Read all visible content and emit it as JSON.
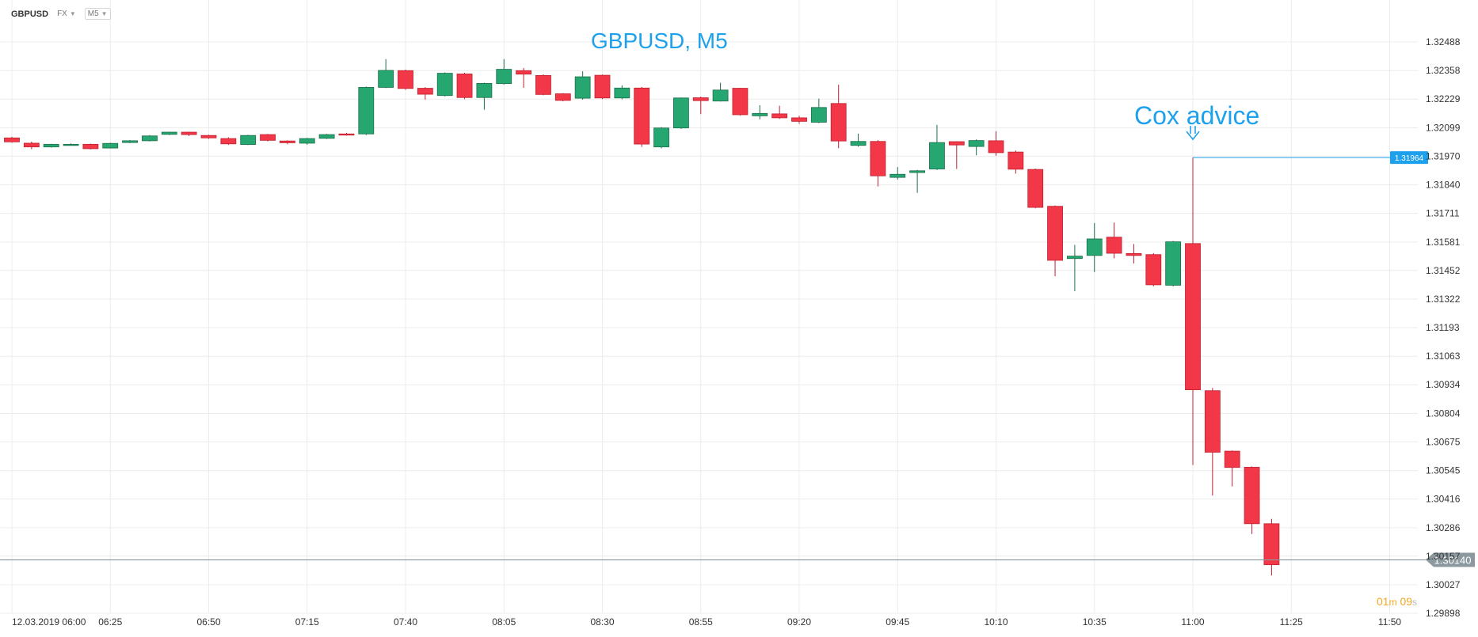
{
  "toolbar": {
    "symbol": "GBPUSD",
    "market": "FX",
    "timeframe": "M5"
  },
  "countdown": {
    "minutes": "01",
    "m": "m",
    "seconds": "09",
    "s": "s"
  },
  "colors": {
    "up": "#26a671",
    "down": "#f23848",
    "accent": "#1ea1ec",
    "grid": "#ececec",
    "price_line": "#8c9aa0",
    "text": "#333333"
  },
  "chart_data": {
    "type": "candlestick",
    "title": "GBPUSD, M5",
    "annotation": {
      "text": "Cox advice",
      "at_time": "11:00",
      "price": 1.31964,
      "price_label": "1.31964"
    },
    "current_price": 1.3014,
    "current_price_label": "1.30140",
    "y_ticks": [
      "1.32488",
      "1.32358",
      "1.32229",
      "1.32099",
      "1.31970",
      "1.31840",
      "1.31711",
      "1.31581",
      "1.31452",
      "1.31322",
      "1.31193",
      "1.31063",
      "1.30934",
      "1.30804",
      "1.30675",
      "1.30545",
      "1.30416",
      "1.30286",
      "1.30157",
      "1.30027",
      "1.29898"
    ],
    "x_ticks": [
      {
        "label": "12.03.2019  06:00",
        "index": 0
      },
      {
        "label": "06:25",
        "index": 5
      },
      {
        "label": "06:50",
        "index": 10
      },
      {
        "label": "07:15",
        "index": 15
      },
      {
        "label": "07:40",
        "index": 20
      },
      {
        "label": "08:05",
        "index": 25
      },
      {
        "label": "08:30",
        "index": 30
      },
      {
        "label": "08:55",
        "index": 35
      },
      {
        "label": "09:20",
        "index": 40
      },
      {
        "label": "09:45",
        "index": 45
      },
      {
        "label": "10:10",
        "index": 50
      },
      {
        "label": "10:35",
        "index": 55
      },
      {
        "label": "11:00",
        "index": 60
      },
      {
        "label": "11:25",
        "index": 65
      },
      {
        "label": "11:50",
        "index": 70
      }
    ],
    "candles": [
      [
        1.32053,
        1.32035,
        1.32058,
        1.32031
      ],
      [
        1.32029,
        1.32012,
        1.32036,
        1.32002
      ],
      [
        1.32012,
        1.32024,
        1.32026,
        1.32009
      ],
      [
        1.32021,
        1.32024,
        1.32028,
        1.32019
      ],
      [
        1.32024,
        1.32004,
        1.32027,
        1.32001
      ],
      [
        1.32007,
        1.32028,
        1.32031,
        1.32005
      ],
      [
        1.32032,
        1.3204,
        1.32043,
        1.32029
      ],
      [
        1.3204,
        1.32062,
        1.32066,
        1.32037
      ],
      [
        1.32069,
        1.32079,
        1.32081,
        1.32066
      ],
      [
        1.32079,
        1.32068,
        1.32081,
        1.32061
      ],
      [
        1.32064,
        1.32053,
        1.32067,
        1.32049
      ],
      [
        1.3205,
        1.32026,
        1.32056,
        1.32021
      ],
      [
        1.32023,
        1.32064,
        1.32067,
        1.3202
      ],
      [
        1.32068,
        1.32042,
        1.32071,
        1.32037
      ],
      [
        1.32039,
        1.32031,
        1.32042,
        1.32024
      ],
      [
        1.32029,
        1.3205,
        1.32053,
        1.32022
      ],
      [
        1.32051,
        1.32068,
        1.32071,
        1.32048
      ],
      [
        1.32071,
        1.32066,
        1.32076,
        1.32063
      ],
      [
        1.32071,
        1.32282,
        1.32286,
        1.32066
      ],
      [
        1.32282,
        1.32359,
        1.3241,
        1.32279
      ],
      [
        1.32358,
        1.32277,
        1.32363,
        1.32271
      ],
      [
        1.32278,
        1.32251,
        1.32283,
        1.32227
      ],
      [
        1.32245,
        1.32346,
        1.3235,
        1.32241
      ],
      [
        1.32343,
        1.32236,
        1.32348,
        1.32229
      ],
      [
        1.32236,
        1.323,
        1.32303,
        1.32181
      ],
      [
        1.32299,
        1.32364,
        1.3241,
        1.32295
      ],
      [
        1.32358,
        1.32342,
        1.3237,
        1.3228
      ],
      [
        1.32336,
        1.3225,
        1.32341,
        1.32246
      ],
      [
        1.32253,
        1.32223,
        1.32256,
        1.32219
      ],
      [
        1.32233,
        1.3233,
        1.32355,
        1.32226
      ],
      [
        1.32337,
        1.32234,
        1.3234,
        1.32229
      ],
      [
        1.32234,
        1.32279,
        1.32291,
        1.32228
      ],
      [
        1.32279,
        1.32025,
        1.32284,
        1.32012
      ],
      [
        1.32012,
        1.32098,
        1.32102,
        1.32006
      ],
      [
        1.32098,
        1.32234,
        1.32236,
        1.32094
      ],
      [
        1.32235,
        1.32222,
        1.3224,
        1.32161
      ],
      [
        1.3222,
        1.3227,
        1.32303,
        1.32218
      ],
      [
        1.32278,
        1.32158,
        1.3228,
        1.32154
      ],
      [
        1.32153,
        1.32164,
        1.32201,
        1.32137
      ],
      [
        1.32162,
        1.32144,
        1.32199,
        1.32139
      ],
      [
        1.32144,
        1.32128,
        1.32154,
        1.32117
      ],
      [
        1.32124,
        1.32191,
        1.32231,
        1.3212
      ],
      [
        1.32209,
        1.32039,
        1.32294,
        1.32006
      ],
      [
        1.32019,
        1.32037,
        1.32072,
        1.32013
      ],
      [
        1.32037,
        1.31881,
        1.32043,
        1.31833
      ],
      [
        1.31874,
        1.31888,
        1.31921,
        1.31864
      ],
      [
        1.31896,
        1.31904,
        1.31908,
        1.31804
      ],
      [
        1.31912,
        1.32032,
        1.32112,
        1.31907
      ],
      [
        1.32036,
        1.32021,
        1.32038,
        1.31912
      ],
      [
        1.32014,
        1.32041,
        1.32046,
        1.31974
      ],
      [
        1.3204,
        1.31986,
        1.32083,
        1.31972
      ],
      [
        1.31989,
        1.31911,
        1.31996,
        1.31891
      ],
      [
        1.3191,
        1.31738,
        1.31914,
        1.31734
      ],
      [
        1.31743,
        1.31498,
        1.31747,
        1.31426
      ],
      [
        1.31506,
        1.31517,
        1.31568,
        1.31358
      ],
      [
        1.3152,
        1.31595,
        1.31667,
        1.31445
      ],
      [
        1.31603,
        1.3153,
        1.31669,
        1.31507
      ],
      [
        1.31529,
        1.3152,
        1.31572,
        1.31484
      ],
      [
        1.31524,
        1.31387,
        1.31531,
        1.3138
      ],
      [
        1.31385,
        1.31582,
        1.31586,
        1.3138
      ],
      [
        1.31574,
        1.30911,
        1.31964,
        1.3057
      ],
      [
        1.30907,
        1.30628,
        1.3092,
        1.30431
      ],
      [
        1.30633,
        1.30559,
        1.30636,
        1.30473
      ],
      [
        1.3056,
        1.30304,
        1.30564,
        1.30257
      ],
      [
        1.30304,
        1.30118,
        1.30326,
        1.30069
      ]
    ]
  }
}
